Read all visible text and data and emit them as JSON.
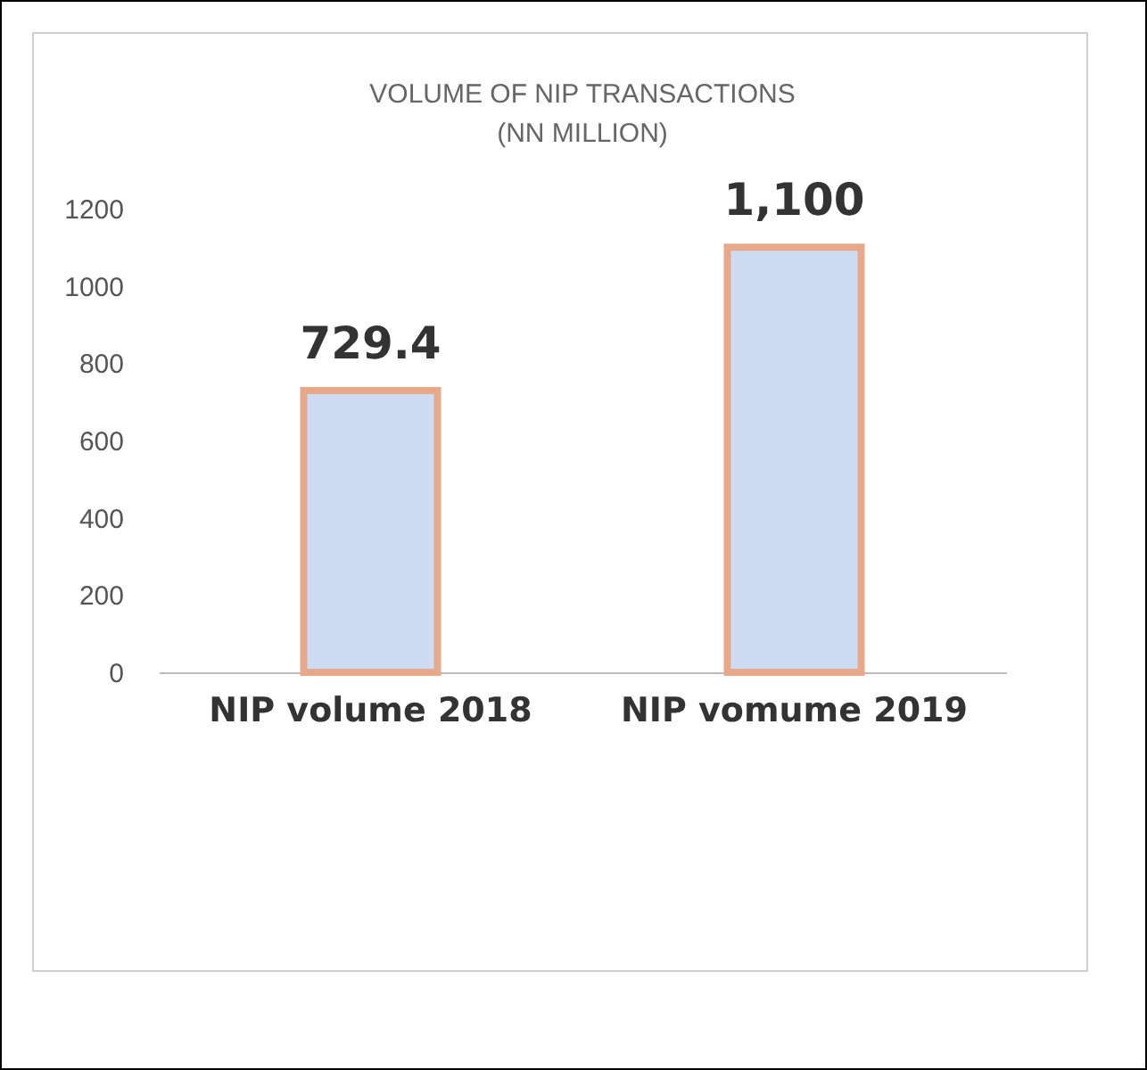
{
  "chart_data": {
    "type": "bar",
    "title": "VOLUME OF NIP TRANSACTIONS\n(NN MILLION)",
    "categories": [
      "NIP volume 2018",
      "NIP vomume 2019"
    ],
    "values": [
      729.4,
      1100
    ],
    "value_labels": [
      "729.4",
      "1,100"
    ],
    "color": "#cddcf2",
    "ylim": [
      0,
      1200
    ],
    "yticks": [
      0,
      200,
      400,
      600,
      800,
      1000,
      1200
    ],
    "grid": false
  }
}
